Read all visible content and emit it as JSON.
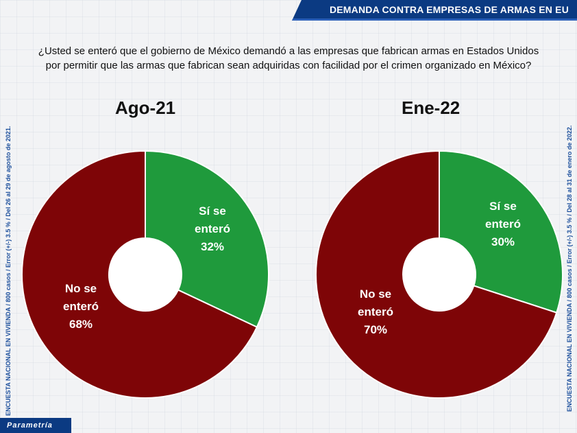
{
  "header": {
    "title": "DEMANDA CONTRA EMPRESAS DE ARMAS EN EU"
  },
  "question": {
    "line1": "¿Usted se enteró que el gobierno de México demandó a las empresas que fabrican armas en Estados Unidos",
    "line2": "por permitir que las armas que fabrican sean adquiridas con facilidad por el crimen organizado en México?"
  },
  "side_notes": {
    "left": "ENCUESTA NACIONAL EN VIVIENDA / 800 casos / Error (+/-) 3.5 % / Del 26 al 29 de agosto de 2021.",
    "right": "ENCUESTA NACIONAL EN VIVIENDA / 800 casos / Error (+/-) 3.5 % / Del 28 al 31 de enero de 2022."
  },
  "logo": "Parametría",
  "colors": {
    "yes": "#1f9a3c",
    "no": "#7e0507",
    "header": "#0b3a82"
  },
  "chart_data": [
    {
      "type": "pie",
      "title": "Ago-21",
      "slices": [
        {
          "label_line1": "Sí se",
          "label_line2": "enteró",
          "value": 32,
          "display": "32%",
          "color": "#1f9a3c"
        },
        {
          "label_line1": "No se",
          "label_line2": "enteró",
          "value": 68,
          "display": "68%",
          "color": "#7e0507"
        }
      ]
    },
    {
      "type": "pie",
      "title": "Ene-22",
      "slices": [
        {
          "label_line1": "Sí se",
          "label_line2": "enteró",
          "value": 30,
          "display": "30%",
          "color": "#1f9a3c"
        },
        {
          "label_line1": "No se",
          "label_line2": "enteró",
          "value": 70,
          "display": "70%",
          "color": "#7e0507"
        }
      ]
    }
  ]
}
